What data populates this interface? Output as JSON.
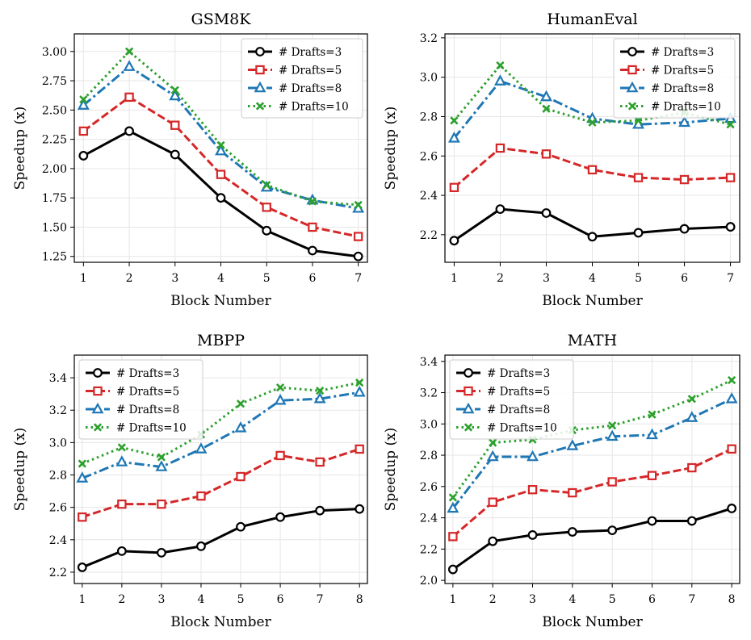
{
  "chart_data": [
    {
      "type": "line",
      "title": "GSM8K",
      "xlabel": "Block Number",
      "ylabel": "Speedup (x)",
      "x": [
        1,
        2,
        3,
        4,
        5,
        6,
        7
      ],
      "xlim": [
        0.8,
        7.2
      ],
      "ylim": [
        1.2,
        3.15
      ],
      "yticks": [
        1.25,
        1.5,
        1.75,
        2.0,
        2.25,
        2.5,
        2.75,
        3.0
      ],
      "ytick_labels": [
        "1.25",
        "1.50",
        "1.75",
        "2.00",
        "2.25",
        "2.50",
        "2.75",
        "3.00"
      ],
      "grid": true,
      "legend_position": "top-right",
      "series": [
        {
          "name": "# Drafts=3",
          "color": "#000000",
          "marker": "circle",
          "style": "solid",
          "values": [
            2.11,
            2.32,
            2.12,
            1.75,
            1.47,
            1.3,
            1.25
          ]
        },
        {
          "name": "# Drafts=5",
          "color": "#d62728",
          "marker": "square",
          "style": "dashed",
          "values": [
            2.32,
            2.61,
            2.37,
            1.95,
            1.67,
            1.5,
            1.42
          ]
        },
        {
          "name": "# Drafts=8",
          "color": "#1f77b4",
          "marker": "triangle",
          "style": "dashdot",
          "values": [
            2.54,
            2.87,
            2.62,
            2.15,
            1.84,
            1.73,
            1.66
          ]
        },
        {
          "name": "# Drafts=10",
          "color": "#2ca02c",
          "marker": "x",
          "style": "dotted",
          "values": [
            2.59,
            3.0,
            2.67,
            2.2,
            1.86,
            1.72,
            1.69
          ]
        }
      ]
    },
    {
      "type": "line",
      "title": "HumanEval",
      "xlabel": "Block Number",
      "ylabel": "Speedup (x)",
      "x": [
        1,
        2,
        3,
        4,
        5,
        6,
        7
      ],
      "xlim": [
        0.8,
        7.2
      ],
      "ylim": [
        2.06,
        3.22
      ],
      "yticks": [
        2.2,
        2.4,
        2.6,
        2.8,
        3.0,
        3.2
      ],
      "ytick_labels": [
        "2.2",
        "2.4",
        "2.6",
        "2.8",
        "3.0",
        "3.2"
      ],
      "grid": true,
      "legend_position": "top-right",
      "series": [
        {
          "name": "# Drafts=3",
          "color": "#000000",
          "marker": "circle",
          "style": "solid",
          "values": [
            2.17,
            2.33,
            2.31,
            2.19,
            2.21,
            2.23,
            2.24
          ]
        },
        {
          "name": "# Drafts=5",
          "color": "#d62728",
          "marker": "square",
          "style": "dashed",
          "values": [
            2.44,
            2.64,
            2.61,
            2.53,
            2.49,
            2.48,
            2.49
          ]
        },
        {
          "name": "# Drafts=8",
          "color": "#1f77b4",
          "marker": "triangle",
          "style": "dashdot",
          "values": [
            2.69,
            2.98,
            2.9,
            2.79,
            2.76,
            2.77,
            2.79
          ]
        },
        {
          "name": "# Drafts=10",
          "color": "#2ca02c",
          "marker": "x",
          "style": "dotted",
          "values": [
            2.78,
            3.06,
            2.84,
            2.77,
            2.78,
            2.82,
            2.76
          ]
        }
      ]
    },
    {
      "type": "line",
      "title": "MBPP",
      "xlabel": "Block Number",
      "ylabel": "Speedup (x)",
      "x": [
        1,
        2,
        3,
        4,
        5,
        6,
        7,
        8
      ],
      "xlim": [
        0.8,
        8.2
      ],
      "ylim": [
        2.13,
        3.54
      ],
      "yticks": [
        2.2,
        2.4,
        2.6,
        2.8,
        3.0,
        3.2,
        3.4
      ],
      "ytick_labels": [
        "2.2",
        "2.4",
        "2.6",
        "2.8",
        "3.0",
        "3.2",
        "3.4"
      ],
      "grid": true,
      "legend_position": "top-left",
      "series": [
        {
          "name": "# Drafts=3",
          "color": "#000000",
          "marker": "circle",
          "style": "solid",
          "values": [
            2.23,
            2.33,
            2.32,
            2.36,
            2.48,
            2.54,
            2.58,
            2.59
          ]
        },
        {
          "name": "# Drafts=5",
          "color": "#d62728",
          "marker": "square",
          "style": "dashed",
          "values": [
            2.54,
            2.62,
            2.62,
            2.67,
            2.79,
            2.92,
            2.88,
            2.96
          ]
        },
        {
          "name": "# Drafts=8",
          "color": "#1f77b4",
          "marker": "triangle",
          "style": "dashdot",
          "values": [
            2.78,
            2.88,
            2.85,
            2.96,
            3.09,
            3.26,
            3.27,
            3.31
          ]
        },
        {
          "name": "# Drafts=10",
          "color": "#2ca02c",
          "marker": "x",
          "style": "dotted",
          "values": [
            2.87,
            2.97,
            2.91,
            3.05,
            3.24,
            3.34,
            3.32,
            3.37
          ]
        }
      ]
    },
    {
      "type": "line",
      "title": "MATH",
      "xlabel": "Block Number",
      "ylabel": "Speedup (x)",
      "x": [
        1,
        2,
        3,
        4,
        5,
        6,
        7,
        8
      ],
      "xlim": [
        0.8,
        8.2
      ],
      "ylim": [
        1.98,
        3.44
      ],
      "yticks": [
        2.0,
        2.2,
        2.4,
        2.6,
        2.8,
        3.0,
        3.2,
        3.4
      ],
      "ytick_labels": [
        "2.0",
        "2.2",
        "2.4",
        "2.6",
        "2.8",
        "3.0",
        "3.2",
        "3.4"
      ],
      "grid": true,
      "legend_position": "top-left",
      "series": [
        {
          "name": "# Drafts=3",
          "color": "#000000",
          "marker": "circle",
          "style": "solid",
          "values": [
            2.07,
            2.25,
            2.29,
            2.31,
            2.32,
            2.38,
            2.38,
            2.46
          ]
        },
        {
          "name": "# Drafts=5",
          "color": "#d62728",
          "marker": "square",
          "style": "dashed",
          "values": [
            2.28,
            2.5,
            2.58,
            2.56,
            2.63,
            2.67,
            2.72,
            2.84
          ]
        },
        {
          "name": "# Drafts=8",
          "color": "#1f77b4",
          "marker": "triangle",
          "style": "dashdot",
          "values": [
            2.46,
            2.79,
            2.79,
            2.86,
            2.92,
            2.93,
            3.04,
            3.16
          ]
        },
        {
          "name": "# Drafts=10",
          "color": "#2ca02c",
          "marker": "x",
          "style": "dotted",
          "values": [
            2.53,
            2.88,
            2.9,
            2.96,
            2.99,
            3.06,
            3.16,
            3.28
          ]
        }
      ]
    }
  ]
}
